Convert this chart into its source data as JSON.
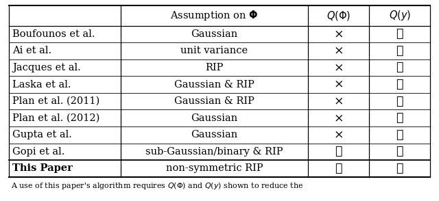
{
  "rows": [
    {
      "author": "Boufounos et al.",
      "assumption": "Gaussian",
      "qphi": false,
      "qy": true
    },
    {
      "author": "Ai et al.",
      "assumption": "unit variance",
      "qphi": false,
      "qy": true
    },
    {
      "author": "Jacques et al.",
      "assumption": "RIP",
      "qphi": false,
      "qy": true
    },
    {
      "author": "Laska et al.",
      "assumption": "Gaussian & RIP",
      "qphi": false,
      "qy": true
    },
    {
      "author": "Plan et al. (2011)",
      "assumption": "Gaussian & RIP",
      "qphi": false,
      "qy": true
    },
    {
      "author": "Plan et al. (2012)",
      "assumption": "Gaussian",
      "qphi": false,
      "qy": true
    },
    {
      "author": "Gupta et al.",
      "assumption": "Gaussian",
      "qphi": false,
      "qy": true
    },
    {
      "author": "Gopi et al.",
      "assumption": "sub-Gaussian/binary & RIP",
      "qphi": true,
      "qy": true
    },
    {
      "author": "This Paper",
      "assumption": "non-symmetric RIP",
      "qphi": true,
      "qy": true,
      "bold": true
    }
  ],
  "check": "✓",
  "cross": "×",
  "bg_color": "#ffffff",
  "text_color": "#000000",
  "figsize": [
    6.4,
    2.94
  ],
  "dpi": 100,
  "caption": "A use of this paper's algorithm requires $Q(\\Phi)$ and $Q(y)$ shown to reduce the"
}
